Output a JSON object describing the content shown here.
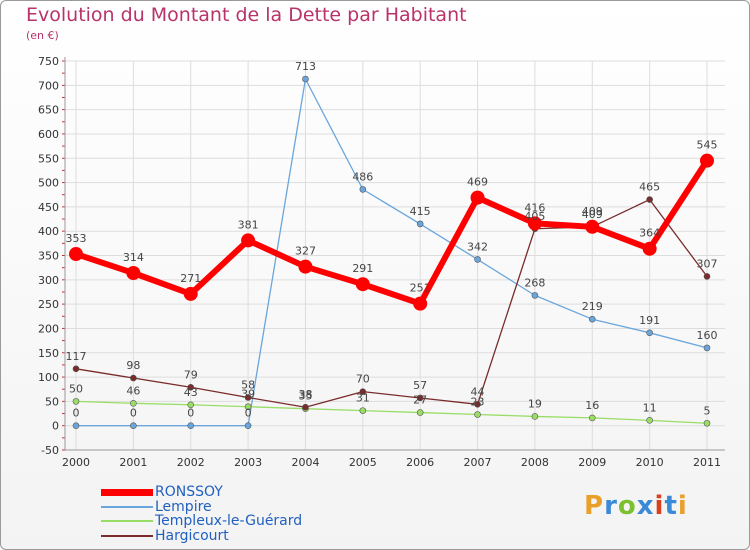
{
  "header": {
    "title": "Evolution du Montant de la Dette par Habitant",
    "subtitle": "(en €)"
  },
  "logo": {
    "letters": [
      "P",
      "r",
      "o",
      "x",
      "i",
      "t",
      "i"
    ],
    "colors": [
      "#e8a02a",
      "#3a8ad8",
      "#7cc030",
      "#3a8ad8",
      "#d84020",
      "#3a8ad8",
      "#e8a02a"
    ]
  },
  "chart_data": {
    "type": "line",
    "x": [
      "2000",
      "2001",
      "2002",
      "2003",
      "2004",
      "2005",
      "2006",
      "2007",
      "2008",
      "2009",
      "2010",
      "2011"
    ],
    "ylim": [
      -50,
      750
    ],
    "yticks": [
      -50,
      0,
      50,
      100,
      150,
      200,
      250,
      300,
      350,
      400,
      450,
      500,
      550,
      600,
      650,
      700,
      750
    ],
    "grid": true,
    "legend_position": "bottom-left",
    "series": [
      {
        "name": "RONSSOY",
        "color": "#ff0000",
        "values": [
          353,
          314,
          271,
          381,
          327,
          291,
          251,
          469,
          416,
          409,
          364,
          545
        ],
        "labels": [
          "353",
          "314",
          "271",
          "381",
          "327",
          "291",
          "251",
          "469",
          "416",
          "409",
          "364",
          "545"
        ]
      },
      {
        "name": "Lempire",
        "color": "#6aa6dc",
        "values": [
          0,
          0,
          0,
          0,
          713,
          486,
          415,
          342,
          268,
          219,
          191,
          160
        ],
        "labels": [
          "0",
          "0",
          "0",
          "0",
          "713",
          "486",
          "415",
          "342",
          "268",
          "219",
          "191",
          "160"
        ]
      },
      {
        "name": "Templeux-le-Guérard",
        "color": "#99dd66",
        "values": [
          50,
          46,
          43,
          39,
          35,
          31,
          27,
          23,
          19,
          16,
          11,
          5
        ],
        "labels": [
          "50",
          "46",
          "43",
          "39",
          "35",
          "31",
          "27",
          "23",
          "19",
          "16",
          "11",
          "5"
        ]
      },
      {
        "name": "Hargicourt",
        "color": "#7a2b2b",
        "values": [
          117,
          98,
          79,
          58,
          38,
          70,
          57,
          44,
          405,
          409,
          465,
          307
        ],
        "labels": [
          "117",
          "98",
          "79",
          "58",
          "38",
          "70",
          "57",
          "44",
          "405",
          "409",
          "465",
          "307"
        ]
      }
    ]
  }
}
